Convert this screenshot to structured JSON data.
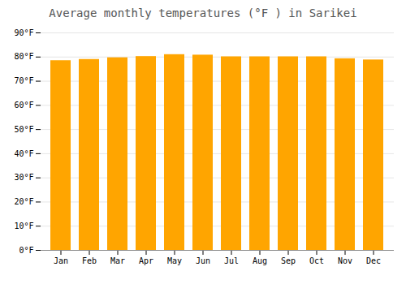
{
  "chart_data": {
    "type": "bar",
    "title": "Average monthly temperatures (°F ) in Sarikei",
    "categories": [
      "Jan",
      "Feb",
      "Mar",
      "Apr",
      "May",
      "Jun",
      "Jul",
      "Aug",
      "Sep",
      "Oct",
      "Nov",
      "Dec"
    ],
    "values": [
      78.5,
      79.0,
      79.7,
      80.2,
      81.0,
      80.8,
      80.1,
      80.1,
      80.1,
      80.1,
      79.3,
      78.8
    ],
    "color": "#FFA500",
    "ylim": [
      0,
      90
    ],
    "yticks": [
      {
        "value": 0,
        "label": "0°F"
      },
      {
        "value": 10,
        "label": "10°F"
      },
      {
        "value": 20,
        "label": "20°F"
      },
      {
        "value": 30,
        "label": "30°F"
      },
      {
        "value": 40,
        "label": "40°F"
      },
      {
        "value": 50,
        "label": "50°F"
      },
      {
        "value": 60,
        "label": "60°F"
      },
      {
        "value": 70,
        "label": "70°F"
      },
      {
        "value": 80,
        "label": "80°F"
      },
      {
        "value": 90,
        "label": "90°F"
      }
    ],
    "grid": true
  }
}
